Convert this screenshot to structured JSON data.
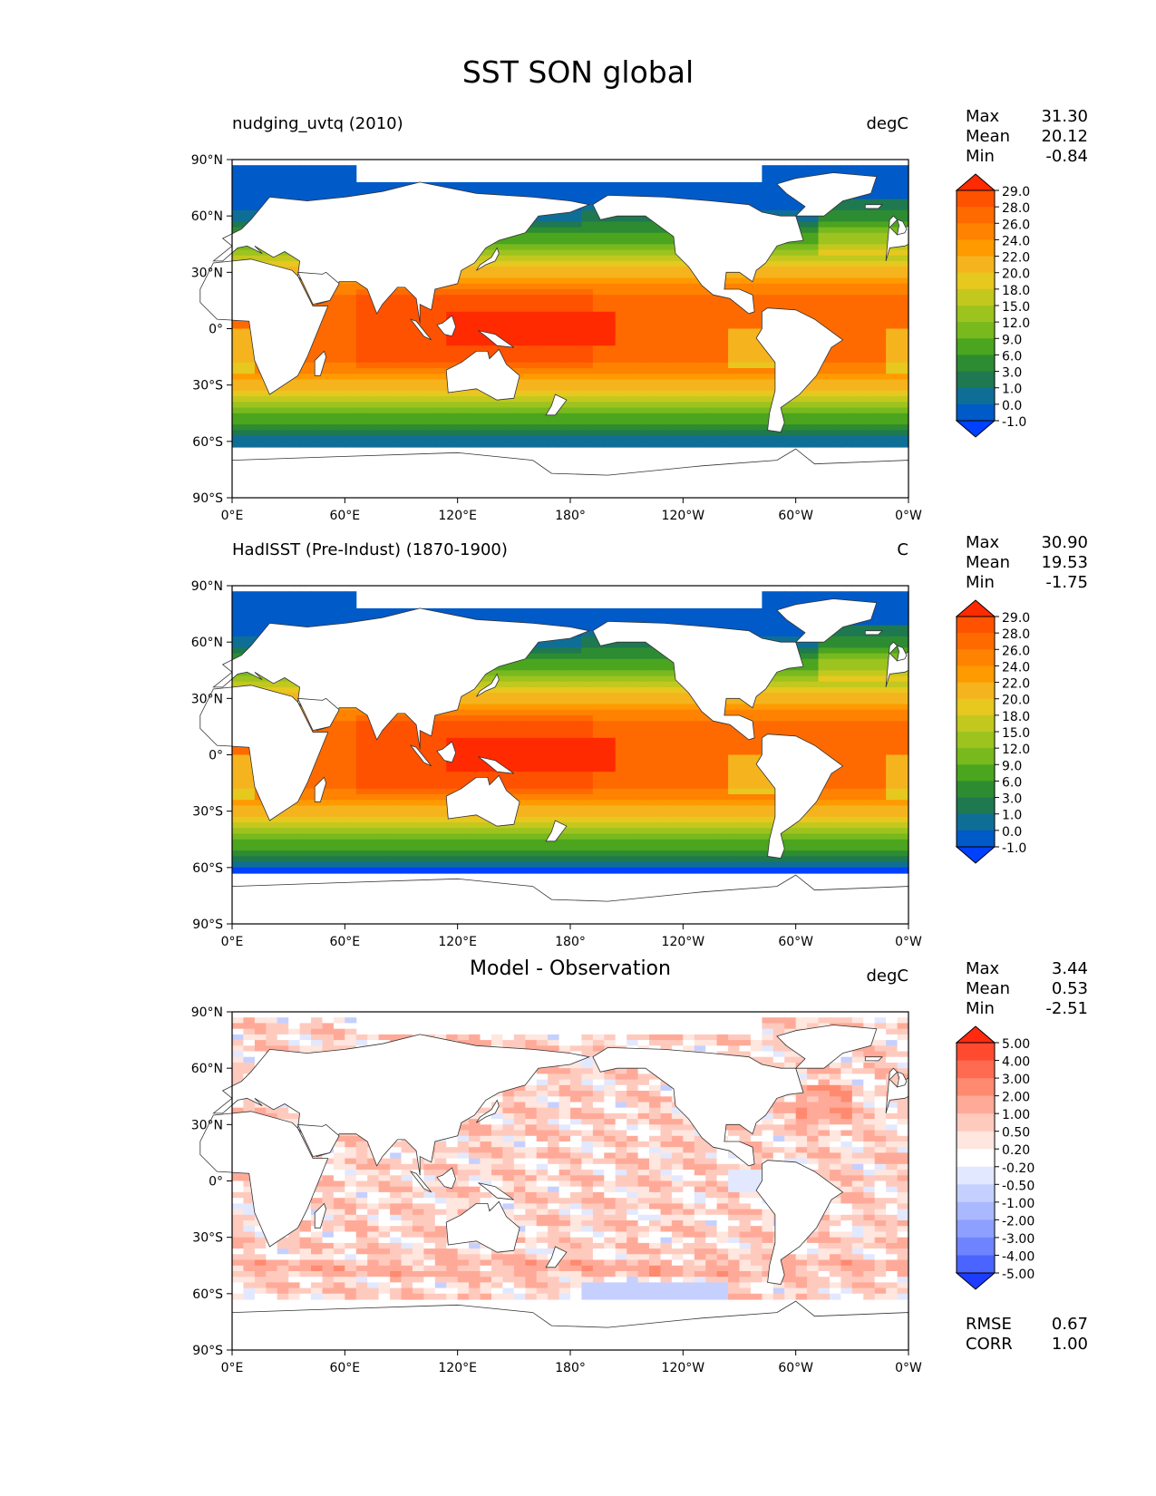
{
  "figure_title": "SST SON global",
  "x_ticks": [
    "0°E",
    "60°E",
    "120°E",
    "180°",
    "120°W",
    "60°W",
    "0°W"
  ],
  "y_ticks": [
    "90°N",
    "60°N",
    "30°N",
    "0°",
    "30°S",
    "60°S",
    "90°S"
  ],
  "panels": [
    {
      "title": "nudging_uvtq (2010)",
      "units": "degC",
      "stats": {
        "max_label": "Max",
        "max": "31.30",
        "mean_label": "Mean",
        "mean": "20.12",
        "min_label": "Min",
        "min": "-0.84"
      },
      "colorbar": {
        "labels": [
          "29.0",
          "28.0",
          "26.0",
          "24.0",
          "22.0",
          "20.0",
          "18.0",
          "15.0",
          "12.0",
          "9.0",
          "6.0",
          "3.0",
          "1.0",
          "0.0",
          "-1.0"
        ],
        "colors": [
          "#ff2a00",
          "#ff5200",
          "#ff6a00",
          "#ff8200",
          "#ff9a00",
          "#f5b41e",
          "#e6c81e",
          "#c3c81e",
          "#9cc31e",
          "#78b91e",
          "#4ba51e",
          "#2d8c32",
          "#1e7850",
          "#0f6e96",
          "#005ac8",
          "#0040ff"
        ]
      },
      "chart_data": {
        "type": "heatmap",
        "field": "sea surface temperature",
        "xlim": [
          0,
          360
        ],
        "ylim": [
          -90,
          90
        ],
        "max": 31.3,
        "mean": 20.12,
        "min": -0.84
      }
    },
    {
      "title": "HadISST (Pre-Indust) (1870-1900)",
      "units": "C",
      "stats": {
        "max_label": "Max",
        "max": "30.90",
        "mean_label": "Mean",
        "mean": "19.53",
        "min_label": "Min",
        "min": "-1.75"
      },
      "colorbar": {
        "labels": [
          "29.0",
          "28.0",
          "26.0",
          "24.0",
          "22.0",
          "20.0",
          "18.0",
          "15.0",
          "12.0",
          "9.0",
          "6.0",
          "3.0",
          "1.0",
          "0.0",
          "-1.0"
        ],
        "colors": [
          "#ff2a00",
          "#ff5200",
          "#ff6a00",
          "#ff8200",
          "#ff9a00",
          "#f5b41e",
          "#e6c81e",
          "#c3c81e",
          "#9cc31e",
          "#78b91e",
          "#4ba51e",
          "#2d8c32",
          "#1e7850",
          "#0f6e96",
          "#005ac8",
          "#0040ff"
        ]
      },
      "chart_data": {
        "type": "heatmap",
        "field": "sea surface temperature",
        "xlim": [
          0,
          360
        ],
        "ylim": [
          -90,
          90
        ],
        "max": 30.9,
        "mean": 19.53,
        "min": -1.75
      }
    },
    {
      "title": "Model - Observation",
      "units": "degC",
      "stats": {
        "max_label": "Max",
        "max": "3.44",
        "mean_label": "Mean",
        "mean": "0.53",
        "min_label": "Min",
        "min": "-2.51"
      },
      "footer": {
        "rmse_label": "RMSE",
        "rmse": "0.67",
        "corr_label": "CORR",
        "corr": "1.00"
      },
      "colorbar": {
        "labels": [
          "5.00",
          "4.00",
          "3.00",
          "2.00",
          "1.00",
          "0.50",
          "0.20",
          "-0.20",
          "-0.50",
          "-1.00",
          "-2.00",
          "-3.00",
          "-4.00",
          "-5.00"
        ],
        "colors": [
          "#ff2a10",
          "#ff4a30",
          "#ff6a50",
          "#ff8a70",
          "#ffaa98",
          "#ffcabe",
          "#ffe6de",
          "#ffffff",
          "#e2e8ff",
          "#c6d0ff",
          "#aab8ff",
          "#8ea0ff",
          "#6e84ff",
          "#4a64ff",
          "#1e3cff"
        ]
      },
      "chart_data": {
        "type": "heatmap",
        "field": "sea surface temperature difference",
        "xlim": [
          0,
          360
        ],
        "ylim": [
          -90,
          90
        ],
        "max": 3.44,
        "mean": 0.53,
        "min": -2.51,
        "rmse": 0.67,
        "corr": 1.0
      }
    }
  ]
}
